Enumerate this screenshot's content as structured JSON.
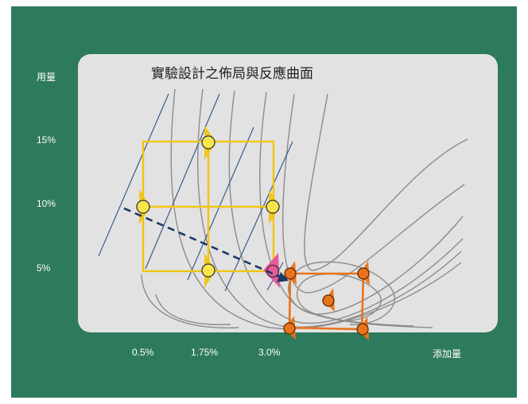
{
  "title": "實驗設計之佈局與反應曲面",
  "y_axis": {
    "label": "用量",
    "ticks": [
      "15%",
      "10%",
      "5%"
    ]
  },
  "x_axis": {
    "label": "添加量",
    "ticks": [
      "0.5%",
      "1.75%",
      "3.0%"
    ]
  },
  "colors": {
    "board": "#2e7a5c",
    "panel": "#e2e2e2",
    "design_1": "#f2c40f",
    "design_2": "#e8731b",
    "transition_marker": "#e85a9c",
    "steepest_ascent_arrow": "#1d3a66",
    "contour": "#8c8c8c",
    "tangent_line": "#3c5a8a"
  },
  "design_1": {
    "x_levels": [
      "0.5%",
      "1.75%",
      "3.0%"
    ],
    "y_levels": [
      "5%",
      "10%",
      "15%"
    ],
    "points": [
      {
        "x": "0.5%",
        "y": "10%"
      },
      {
        "x": "1.75%",
        "y": "15%"
      },
      {
        "x": "1.75%",
        "y": "5%"
      },
      {
        "x": "3.0%",
        "y": "10%"
      }
    ]
  },
  "design_2": {
    "point_count": 5
  }
}
